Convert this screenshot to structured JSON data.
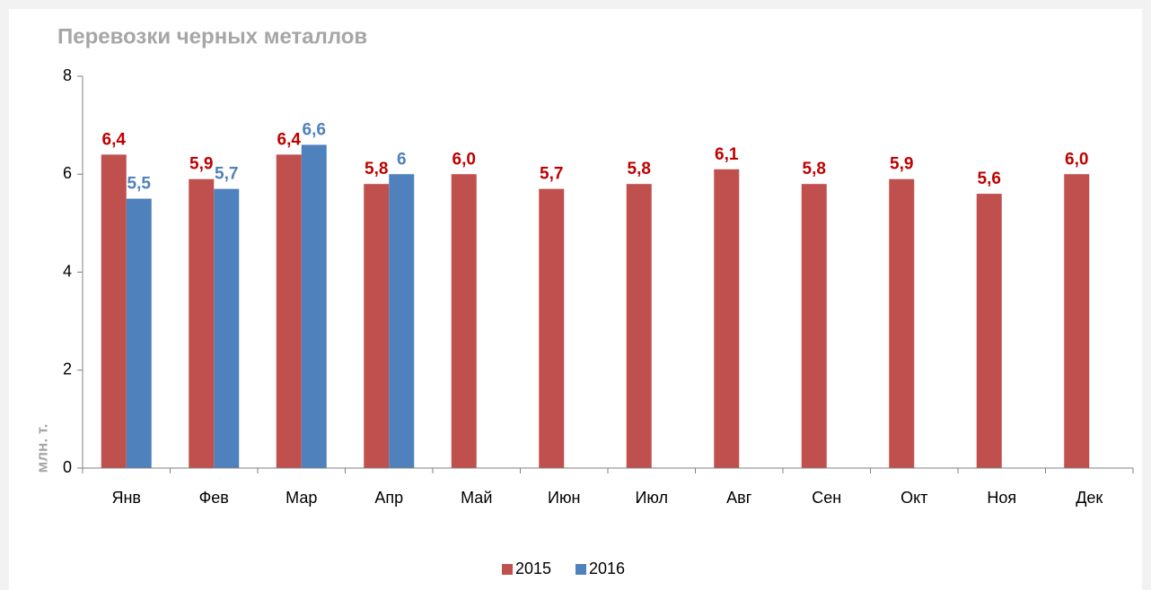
{
  "chart_data": {
    "type": "bar",
    "title": "Перевозки черных металлов",
    "y_label": "млн. т.",
    "categories": [
      "Янв",
      "Фев",
      "Мар",
      "Апр",
      "Май",
      "Июн",
      "Июл",
      "Авг",
      "Сен",
      "Окт",
      "Ноя",
      "Дек"
    ],
    "series": [
      {
        "name": "2015",
        "color": "#c0504d",
        "label_color": "#c00000",
        "values": [
          6.4,
          5.9,
          6.4,
          5.8,
          6.0,
          5.7,
          5.8,
          6.1,
          5.8,
          5.9,
          5.6,
          6.0
        ],
        "value_labels": [
          "6,4",
          "5,9",
          "6,4",
          "5,8",
          "6,0",
          "5,7",
          "5,8",
          "6,1",
          "5,8",
          "5,9",
          "5,6",
          "6,0"
        ]
      },
      {
        "name": "2016",
        "color": "#4f81bd",
        "label_color": "#4f81bd",
        "values": [
          5.5,
          5.7,
          6.6,
          6,
          null,
          null,
          null,
          null,
          null,
          null,
          null,
          null
        ],
        "value_labels": [
          "5,5",
          "5,7",
          "6,6",
          "6",
          null,
          null,
          null,
          null,
          null,
          null,
          null,
          null
        ]
      }
    ],
    "ylim": [
      0,
      8
    ],
    "yticks": [
      0,
      2,
      4,
      6,
      8
    ],
    "legend": "bottom"
  }
}
